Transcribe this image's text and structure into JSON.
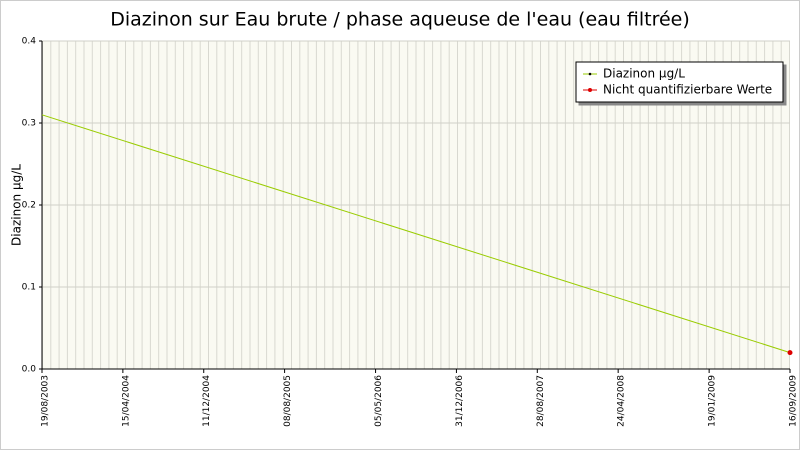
{
  "chart_data": {
    "type": "line",
    "title": "Diazinon sur Eau brute / phase aqueuse de l'eau (eau filtrée)",
    "y_label": "Diazinon µg/L",
    "x": [
      "19/08/2003",
      "16/09/2009"
    ],
    "series": [
      {
        "name": "Diazinon µg/L",
        "color": "#99cc00",
        "marker_color": "#000000",
        "values": [
          0.31,
          0.02
        ]
      },
      {
        "name": "Nicht quantifizierbare Werte",
        "color": "#dd0000",
        "values": [
          null,
          0.02
        ]
      }
    ],
    "xlim": [
      "19/08/2003",
      "16/09/2009"
    ],
    "xticks": [
      "19/08/2003",
      "15/04/2004",
      "11/12/2004",
      "08/08/2005",
      "05/05/2006",
      "31/12/2006",
      "28/08/2007",
      "24/04/2008",
      "19/01/2009",
      "16/09/2009"
    ],
    "ylim": [
      0,
      0.4
    ],
    "yticks": [
      {
        "value": 0,
        "label": "0.0"
      },
      0.1,
      0.2,
      0.3,
      0.4
    ],
    "grid": true,
    "legend": "upper right"
  }
}
